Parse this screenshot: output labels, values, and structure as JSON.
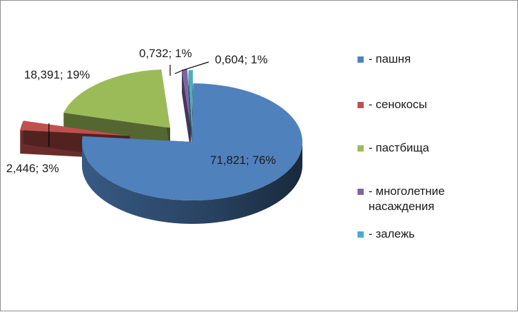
{
  "colors": {
    "frame_border": "#8c8c8c",
    "leader": "#000000"
  },
  "chart_data": {
    "type": "pie",
    "style": "3d-exploded",
    "title": "",
    "legend_position": "right",
    "slices": [
      {
        "name": "- пашня",
        "value": 71.821,
        "percent": 76,
        "label": "71,821; 76%",
        "color": "#4f81bd"
      },
      {
        "name": "- сенокосы",
        "value": 2.446,
        "percent": 3,
        "label": "2,446; 3%",
        "color": "#c0504d"
      },
      {
        "name": "- пастбища",
        "value": 18.391,
        "percent": 19,
        "label": "18,391; 19%",
        "color": "#9bbb59"
      },
      {
        "name": "- многолетние\nнасаждения",
        "value": 0.732,
        "percent": 1,
        "label": "0,732; 1%",
        "color": "#8064a2"
      },
      {
        "name": "- залежь",
        "value": 0.604,
        "percent": 1,
        "label": "0,604; 1%",
        "color": "#4bacc6"
      }
    ]
  }
}
